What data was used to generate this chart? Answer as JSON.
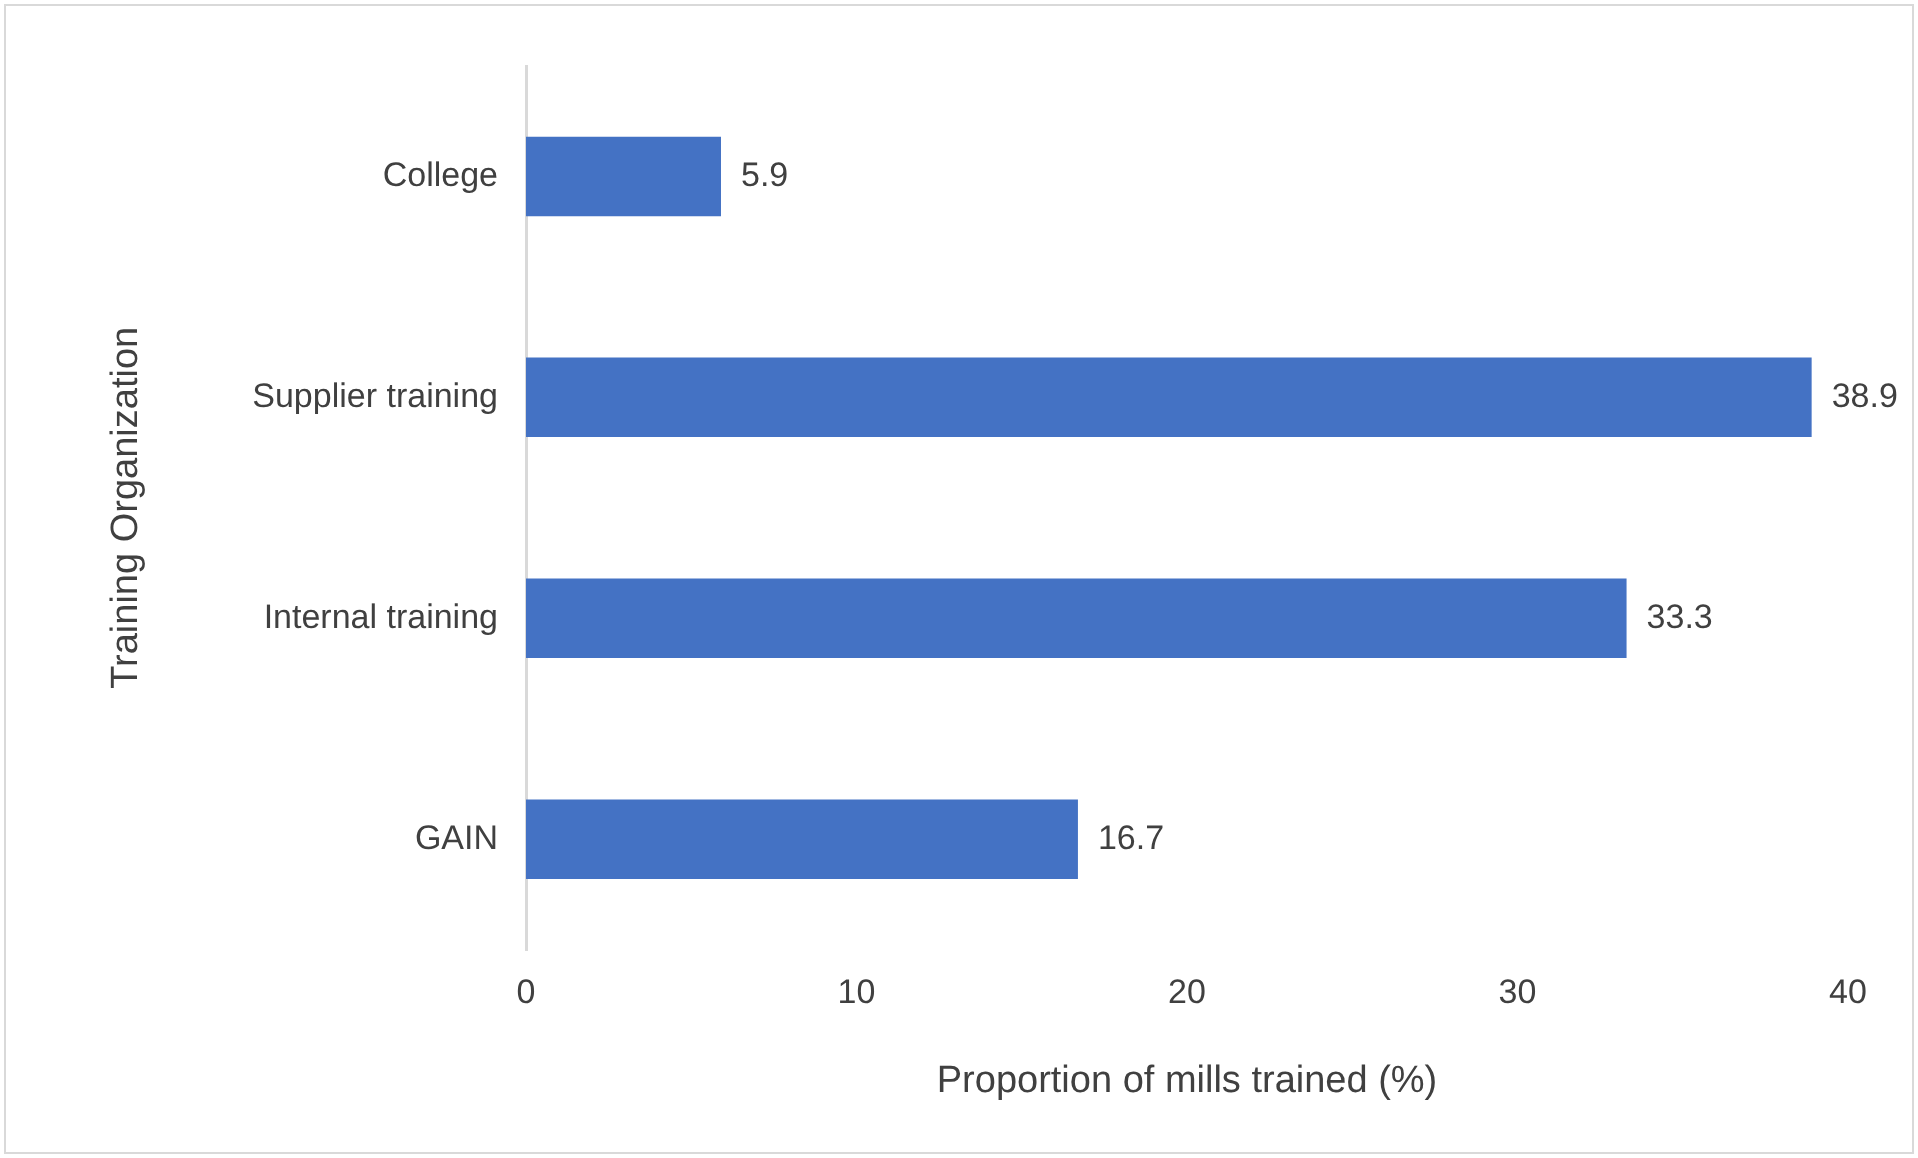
{
  "chart_data": {
    "type": "bar",
    "orientation": "horizontal",
    "xlabel": "Proportion of mills trained (%)",
    "ylabel": "Training Organization",
    "categories": [
      "College",
      "Supplier training",
      "Internal training",
      "GAIN"
    ],
    "values": [
      5.9,
      38.9,
      33.3,
      16.7
    ],
    "color": "#4472c4",
    "xlim": [
      0,
      40
    ],
    "xticks": [
      0,
      10,
      20,
      30,
      40
    ],
    "grid": false,
    "legend": false,
    "data_labels": true
  }
}
